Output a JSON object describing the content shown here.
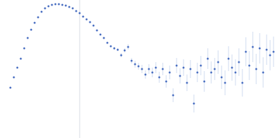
{
  "chart_data": {
    "type": "scatter",
    "marker": "circle",
    "color": "#4a6fc1",
    "tick_labels": false,
    "grid": false,
    "xlim": [
      0,
      100
    ],
    "ylim": [
      0,
      100
    ],
    "reference_line_x": 28.75,
    "x": [
      3.75,
      5,
      6.25,
      7.5,
      8.75,
      10,
      11.25,
      12.5,
      13.75,
      15,
      16.25,
      17.5,
      18.75,
      20,
      21.25,
      22.5,
      23.75,
      25,
      26.25,
      27.5,
      28.75,
      30,
      31.25,
      32.5,
      33.75,
      35,
      36.25,
      37.5,
      38.75,
      40,
      41.25,
      42.5,
      43.75,
      45,
      46.25,
      47.5,
      48.75,
      50,
      51.25,
      52.5,
      53.75,
      55,
      56.25,
      57.5,
      58.75,
      60,
      61.25,
      62.5,
      63.75,
      65,
      66.25,
      67.5,
      68.75,
      70,
      71.25,
      72.5,
      73.75,
      75,
      76.25,
      77.5,
      78.75,
      80,
      81.25,
      82.5,
      83.75,
      85,
      86.25,
      87.5,
      88.75,
      90,
      91.25,
      92.5,
      93.75,
      95,
      96.25,
      97.5,
      98.75
    ],
    "values": [
      36.5,
      44,
      51,
      57.5,
      65,
      72.5,
      78.5,
      83.5,
      87.5,
      91.5,
      94,
      95.5,
      96.5,
      97,
      97,
      96.5,
      96,
      95,
      94,
      92,
      90.5,
      88,
      86,
      84,
      81.5,
      78,
      75,
      72.5,
      69,
      66.5,
      65,
      64,
      60,
      63.5,
      66,
      56,
      53.5,
      52,
      50,
      46,
      50,
      47.5,
      51,
      44,
      50,
      41,
      47.5,
      31,
      52.5,
      45,
      51,
      40,
      50,
      25,
      47.5,
      52.5,
      41,
      57.5,
      47.5,
      50,
      55,
      44,
      40,
      57.5,
      51,
      47.5,
      55,
      40,
      62.5,
      52.5,
      66,
      50,
      65,
      47.5,
      64,
      60,
      62.5
    ],
    "errors": [
      0.5,
      0.5,
      0.5,
      0.5,
      0.5,
      0.5,
      0.5,
      0.5,
      0.5,
      0.5,
      0.5,
      0.5,
      0.5,
      0.5,
      0.5,
      0.5,
      0.5,
      0.5,
      0.5,
      0.5,
      0.5,
      0.5,
      0.5,
      0.5,
      0.5,
      0.5,
      0.5,
      0.5,
      0.5,
      0.5,
      1,
      1,
      1.5,
      1.5,
      2,
      2,
      2.5,
      2.5,
      3,
      3,
      3.5,
      3.5,
      4,
      4,
      4.5,
      4.5,
      5,
      5,
      5.5,
      5.5,
      6,
      6,
      6.5,
      6.5,
      7,
      7,
      7.5,
      7.5,
      8,
      8,
      8.5,
      8.5,
      9,
      9,
      9.5,
      9.5,
      10,
      10,
      10.5,
      10.5,
      11,
      11,
      11,
      11,
      11,
      11,
      11
    ]
  }
}
